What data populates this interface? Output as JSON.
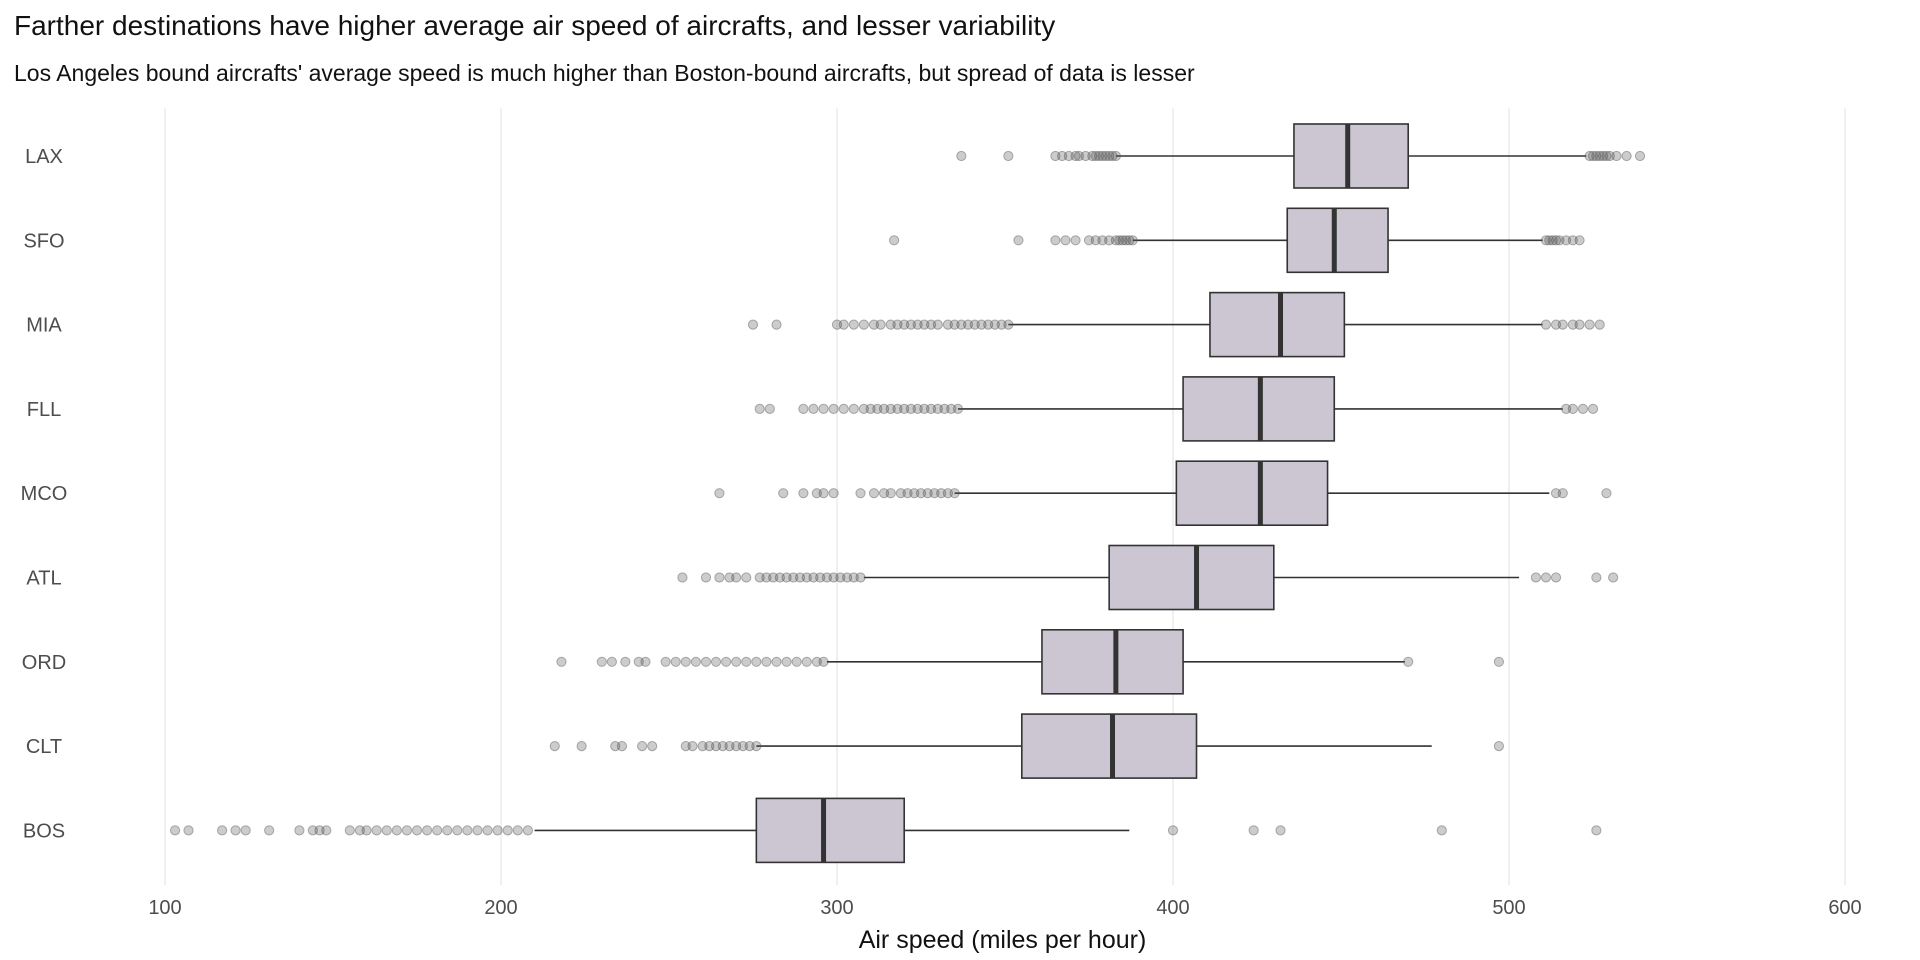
{
  "chart_data": {
    "type": "boxplot",
    "title": "Farther destinations have higher average air speed of aircrafts, and lesser variability",
    "subtitle": "Los Angeles bound aircrafts' average speed is much higher than Boston-bound aircrafts, but spread of data is lesser",
    "xlabel": "Air speed (miles per hour)",
    "ylabel": "",
    "xlim": [
      95,
      605
    ],
    "x_ticks": [
      100,
      200,
      300,
      400,
      500,
      600
    ],
    "grid": "vertical major gridlines",
    "colors": {
      "box_fill": "#cbc6d2",
      "box_stroke": "#333333",
      "outlier": "#555555",
      "grid": "#e5e5e5"
    },
    "categories": [
      "LAX",
      "SFO",
      "MIA",
      "FLL",
      "MCO",
      "ATL",
      "ORD",
      "CLT",
      "BOS"
    ],
    "boxes": [
      {
        "category": "LAX",
        "whisker_low": 383,
        "q1": 436,
        "median": 452,
        "q3": 470,
        "whisker_high": 523,
        "outliers": [
          337,
          351,
          365,
          367,
          369,
          371,
          372,
          374,
          376,
          377,
          378,
          379,
          380,
          381,
          382,
          383,
          524,
          525,
          526,
          527,
          528,
          529,
          530,
          532,
          535,
          539
        ]
      },
      {
        "category": "SFO",
        "whisker_low": 388,
        "q1": 434,
        "median": 448,
        "q3": 464,
        "whisker_high": 510,
        "outliers": [
          317,
          354,
          365,
          368,
          371,
          375,
          377,
          379,
          381,
          383,
          384,
          385,
          386,
          387,
          388,
          511,
          512,
          513,
          514,
          515,
          517,
          519,
          521
        ]
      },
      {
        "category": "MIA",
        "whisker_low": 351,
        "q1": 411,
        "median": 432,
        "q3": 451,
        "whisker_high": 510,
        "outliers": [
          275,
          282,
          300,
          302,
          305,
          308,
          311,
          313,
          316,
          318,
          320,
          322,
          324,
          326,
          328,
          330,
          333,
          335,
          337,
          339,
          341,
          343,
          345,
          347,
          349,
          351,
          511,
          514,
          516,
          519,
          521,
          524,
          527
        ]
      },
      {
        "category": "FLL",
        "whisker_low": 336,
        "q1": 403,
        "median": 426,
        "q3": 448,
        "whisker_high": 516,
        "outliers": [
          277,
          280,
          290,
          293,
          296,
          299,
          302,
          305,
          308,
          310,
          312,
          314,
          316,
          318,
          320,
          322,
          324,
          326,
          328,
          330,
          332,
          334,
          336,
          517,
          519,
          522,
          525
        ]
      },
      {
        "category": "MCO",
        "whisker_low": 335,
        "q1": 401,
        "median": 426,
        "q3": 446,
        "whisker_high": 512,
        "outliers": [
          265,
          284,
          290,
          294,
          296,
          299,
          307,
          311,
          314,
          316,
          319,
          321,
          323,
          325,
          327,
          329,
          331,
          333,
          335,
          514,
          516,
          529
        ]
      },
      {
        "category": "ATL",
        "whisker_low": 308,
        "q1": 381,
        "median": 407,
        "q3": 430,
        "whisker_high": 503,
        "outliers": [
          254,
          261,
          265,
          268,
          270,
          273,
          277,
          279,
          281,
          283,
          285,
          287,
          289,
          291,
          293,
          295,
          297,
          299,
          301,
          303,
          305,
          307,
          508,
          511,
          514,
          526,
          531
        ]
      },
      {
        "category": "ORD",
        "whisker_low": 297,
        "q1": 361,
        "median": 383,
        "q3": 403,
        "whisker_high": 469,
        "outliers": [
          218,
          230,
          233,
          237,
          241,
          243,
          249,
          252,
          255,
          258,
          261,
          264,
          267,
          270,
          273,
          276,
          279,
          282,
          285,
          288,
          291,
          294,
          296,
          470,
          497
        ]
      },
      {
        "category": "CLT",
        "whisker_low": 276,
        "q1": 355,
        "median": 382,
        "q3": 407,
        "whisker_high": 477,
        "outliers": [
          216,
          224,
          234,
          236,
          242,
          245,
          255,
          257,
          260,
          262,
          264,
          266,
          268,
          270,
          272,
          274,
          276,
          497
        ]
      },
      {
        "category": "BOS",
        "whisker_low": 210,
        "q1": 276,
        "median": 296,
        "q3": 320,
        "whisker_high": 387,
        "outliers": [
          103,
          107,
          117,
          121,
          124,
          131,
          140,
          144,
          146,
          148,
          155,
          158,
          160,
          163,
          166,
          169,
          172,
          175,
          178,
          181,
          184,
          187,
          190,
          193,
          196,
          199,
          202,
          205,
          208,
          400,
          424,
          432,
          480,
          526
        ]
      }
    ]
  }
}
